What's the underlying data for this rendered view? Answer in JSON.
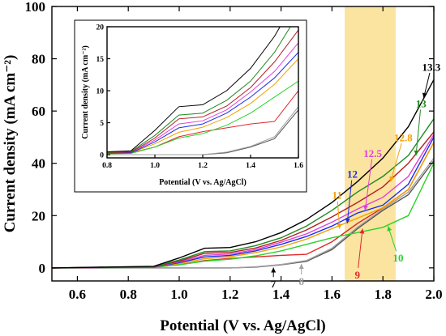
{
  "chart_data": {
    "type": "line",
    "xlabel": "Potential (V vs. Ag/AgCl)",
    "ylabel": "Current density (mA cm⁻²)",
    "xlim": [
      0.5,
      2.0
    ],
    "ylim": [
      -5,
      100
    ],
    "xticks": [
      "0.6",
      "0.8",
      "1.0",
      "1.2",
      "1.4",
      "1.6",
      "1.8",
      "2.0"
    ],
    "yticks": [
      "0",
      "20",
      "40",
      "60",
      "80",
      "100"
    ],
    "highlight": {
      "x_from": 1.65,
      "x_to": 1.85,
      "color": "#fbe3a0"
    },
    "series": [
      {
        "name": "7",
        "color": "#555555",
        "x": [
          0.5,
          1.2,
          1.3,
          1.4,
          1.5,
          1.6,
          1.7,
          1.8,
          1.9,
          2.0
        ],
        "y": [
          0,
          0,
          0.3,
          1.2,
          2.5,
          7,
          15,
          22,
          28,
          41
        ]
      },
      {
        "name": "8",
        "color": "#a0a0a0",
        "x": [
          0.5,
          1.2,
          1.3,
          1.4,
          1.5,
          1.6,
          1.7,
          1.8,
          1.9,
          2.0
        ],
        "y": [
          0,
          0,
          0.4,
          1.3,
          2.8,
          7.5,
          15.5,
          22.5,
          29,
          42
        ]
      },
      {
        "name": "9",
        "color": "#e0282a",
        "x": [
          0.5,
          0.9,
          1.0,
          1.1,
          1.2,
          1.3,
          1.4,
          1.5,
          1.6,
          1.7,
          1.8,
          1.9,
          2.0
        ],
        "y": [
          0,
          0.3,
          1.2,
          2.8,
          3.6,
          4.2,
          4.8,
          5.2,
          10,
          17,
          23,
          30,
          48
        ]
      },
      {
        "name": "10",
        "color": "#2bd22b",
        "x": [
          0.5,
          0.9,
          1.0,
          1.1,
          1.2,
          1.3,
          1.4,
          1.5,
          1.6,
          1.7,
          1.8,
          1.9,
          2.0
        ],
        "y": [
          0,
          0.2,
          1.2,
          2.6,
          3.3,
          4.6,
          6.5,
          9,
          11.5,
          13.5,
          15.5,
          20,
          40
        ]
      },
      {
        "name": "11",
        "color": "#f5a000",
        "x": [
          0.5,
          0.9,
          1.0,
          1.1,
          1.2,
          1.3,
          1.4,
          1.5,
          1.6,
          1.7,
          1.8,
          1.9,
          2.0
        ],
        "y": [
          0,
          0.3,
          1.7,
          3.5,
          4.3,
          5.8,
          8,
          11,
          15,
          19,
          23,
          30,
          48
        ]
      },
      {
        "name": "12",
        "color": "#1a2fe6",
        "x": [
          0.5,
          0.9,
          1.0,
          1.1,
          1.2,
          1.3,
          1.4,
          1.5,
          1.6,
          1.7,
          1.8,
          1.9,
          2.0
        ],
        "y": [
          0,
          0.3,
          2,
          4.2,
          4.8,
          6.5,
          9,
          12,
          16,
          21,
          24,
          32,
          50
        ]
      },
      {
        "name": "12.5",
        "color": "#e040d8",
        "x": [
          0.5,
          0.9,
          1.0,
          1.1,
          1.2,
          1.3,
          1.4,
          1.5,
          1.6,
          1.7,
          1.8,
          1.9,
          2.0
        ],
        "y": [
          0,
          0.4,
          2.3,
          4.8,
          5.3,
          7,
          9.8,
          13,
          17.5,
          22.5,
          27,
          35,
          51
        ]
      },
      {
        "name": "12.8",
        "color": "#b02020",
        "x": [
          0.5,
          0.9,
          1.0,
          1.1,
          1.2,
          1.3,
          1.4,
          1.5,
          1.6,
          1.7,
          1.8,
          1.9,
          2.0
        ],
        "y": [
          0,
          0.4,
          2.6,
          5.6,
          5.9,
          7.6,
          10.5,
          14.5,
          19.5,
          25,
          31,
          40,
          52
        ]
      },
      {
        "name": "13",
        "color": "#1e8a1e",
        "x": [
          0.5,
          0.9,
          1.0,
          1.1,
          1.2,
          1.3,
          1.4,
          1.5,
          1.6,
          1.7,
          1.8,
          1.9,
          2.0
        ],
        "y": [
          0,
          0.5,
          3,
          6.2,
          6.5,
          8.5,
          11.5,
          16,
          22,
          29,
          35,
          43,
          57
        ]
      },
      {
        "name": "13.3",
        "color": "#000000",
        "x": [
          0.5,
          0.9,
          1.0,
          1.1,
          1.2,
          1.3,
          1.4,
          1.5,
          1.6,
          1.7,
          1.8,
          1.9,
          2.0
        ],
        "y": [
          0,
          0.6,
          3.8,
          7.5,
          7.8,
          10,
          13.5,
          18.5,
          25,
          33,
          42,
          54,
          72
        ]
      }
    ],
    "inset": {
      "xlabel": "Potential (V vs. Ag/AgCl)",
      "ylabel": "Current density (mA cm⁻²)",
      "xlim": [
        0.8,
        1.6
      ],
      "ylim": [
        -0.5,
        20
      ],
      "xticks": [
        "0.8",
        "1.0",
        "1.2",
        "1.4",
        "1.6"
      ],
      "yticks": [
        "0",
        "5",
        "10",
        "15",
        "20"
      ]
    },
    "annotations": [
      {
        "text": "7",
        "color": "#000000",
        "x": 1.37,
        "y": -6,
        "ax": 1.37,
        "ay": 0.1
      },
      {
        "text": "8",
        "color": "#a0a0a0",
        "x": 1.48,
        "y": -5,
        "ax": 1.48,
        "ay": 1.5
      },
      {
        "text": "9",
        "color": "#e0282a",
        "x": 1.7,
        "y": -2.5,
        "ax": 1.72,
        "ay": 15
      },
      {
        "text": "10",
        "color": "#2bd22b",
        "x": 1.86,
        "y": 4,
        "ax": 1.82,
        "ay": 16
      },
      {
        "text": "11",
        "color": "#f5a000",
        "x": 1.62,
        "y": 28,
        "ax": 1.63,
        "ay": 15
      },
      {
        "text": "12",
        "color": "#1a2fe6",
        "x": 1.68,
        "y": 36,
        "ax": 1.66,
        "ay": 17
      },
      {
        "text": "12.5",
        "color": "#e040d8",
        "x": 1.76,
        "y": 44,
        "ax": 1.73,
        "ay": 22
      },
      {
        "text": "12.8",
        "color": "#f5a000",
        "x": 1.88,
        "y": 50,
        "ax": 1.83,
        "ay": 33
      },
      {
        "text": "13",
        "color": "#1e8a1e",
        "x": 1.95,
        "y": 63,
        "ax": 1.93,
        "ay": 43
      },
      {
        "text": "13.3",
        "color": "#000000",
        "x": 1.99,
        "y": 77,
        "ax": 1.96,
        "ay": 65
      }
    ]
  }
}
